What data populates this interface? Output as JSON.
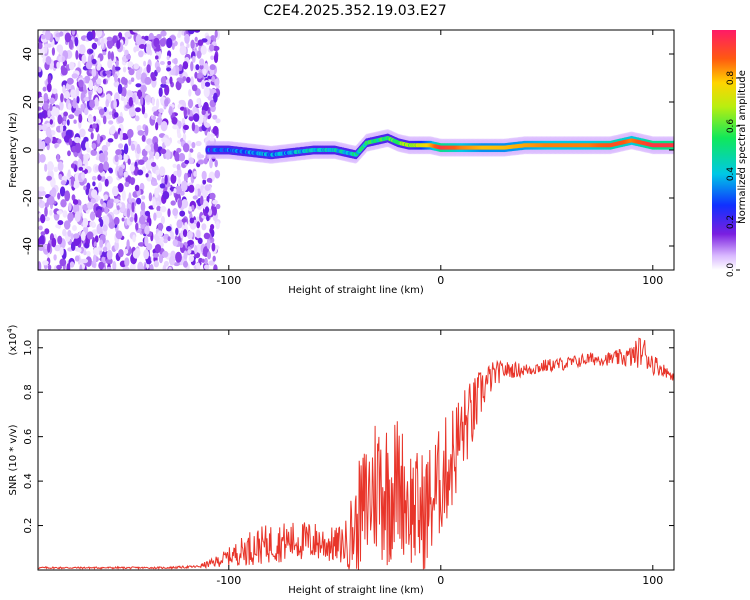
{
  "title": "C2E4.2025.352.19.03.E27",
  "chart_data": [
    {
      "type": "heatmap",
      "name": "spectrogram",
      "xlabel": "Height of straight line (km)",
      "ylabel": "Frequency (Hz)",
      "xlim": [
        -190,
        110
      ],
      "ylim": [
        -50,
        50
      ],
      "xticks": [
        -100,
        0,
        100
      ],
      "yticks": [
        -40,
        -20,
        0,
        20,
        40
      ],
      "noise_region_x": [
        -190,
        -105
      ],
      "ridge": {
        "x": [
          -110,
          -100,
          -90,
          -80,
          -70,
          -60,
          -50,
          -40,
          -35,
          -30,
          -25,
          -20,
          -15,
          -10,
          -5,
          0,
          10,
          20,
          30,
          40,
          50,
          60,
          70,
          80,
          85,
          90,
          95,
          100,
          110
        ],
        "freq": [
          0,
          0,
          -1,
          -2,
          -1,
          0,
          0,
          -2,
          3,
          4,
          5,
          3,
          2,
          2,
          2,
          1,
          1,
          1,
          1,
          2,
          2,
          2,
          2,
          2,
          3,
          4,
          3,
          2,
          2
        ],
        "amp": [
          0.25,
          0.3,
          0.32,
          0.35,
          0.35,
          0.4,
          0.4,
          0.45,
          0.5,
          0.5,
          0.55,
          0.6,
          0.65,
          0.7,
          0.8,
          0.95,
          0.85,
          0.8,
          0.8,
          0.82,
          0.85,
          0.85,
          0.85,
          0.9,
          0.9,
          0.85,
          0.9,
          0.95,
          0.95
        ]
      },
      "colorbar": {
        "label": "Normalized spectral amplitude",
        "range": [
          0,
          1
        ],
        "ticks": [
          "0.0",
          "0.2",
          "0.4",
          "0.6",
          "0.8"
        ]
      }
    },
    {
      "type": "line",
      "name": "snr",
      "xlabel": "Height of straight line (km)",
      "ylabel": "SNR (10 * v/v)",
      "y_scale_label": "(x10",
      "y_scale_exp": "4",
      "xlim": [
        -190,
        110
      ],
      "ylim": [
        0,
        1.08
      ],
      "xticks": [
        -100,
        0,
        100
      ],
      "yticks": [
        "0.2",
        "0.4",
        "0.6",
        "0.8",
        "1.0"
      ],
      "color": "#e8352a",
      "series": [
        {
          "name": "SNR",
          "x": [
            -190,
            -170,
            -150,
            -130,
            -115,
            -108,
            -100,
            -95,
            -90,
            -80,
            -70,
            -60,
            -50,
            -45,
            -40,
            -35,
            -30,
            -25,
            -20,
            -15,
            -10,
            -5,
            0,
            5,
            10,
            15,
            20,
            25,
            30,
            40,
            50,
            60,
            70,
            80,
            90,
            95,
            100,
            105,
            110
          ],
          "y": [
            0.01,
            0.01,
            0.01,
            0.01,
            0.015,
            0.03,
            0.06,
            0.08,
            0.1,
            0.12,
            0.13,
            0.13,
            0.11,
            0.12,
            0.2,
            0.3,
            0.4,
            0.35,
            0.4,
            0.3,
            0.25,
            0.3,
            0.4,
            0.5,
            0.62,
            0.7,
            0.82,
            0.88,
            0.9,
            0.9,
            0.92,
            0.93,
            0.95,
            0.95,
            0.96,
            0.99,
            0.93,
            0.9,
            0.87
          ],
          "noise": [
            0.004,
            0.004,
            0.004,
            0.004,
            0.006,
            0.02,
            0.04,
            0.06,
            0.08,
            0.09,
            0.09,
            0.09,
            0.08,
            0.1,
            0.25,
            0.3,
            0.35,
            0.35,
            0.3,
            0.28,
            0.28,
            0.28,
            0.25,
            0.25,
            0.2,
            0.16,
            0.1,
            0.06,
            0.04,
            0.03,
            0.03,
            0.03,
            0.03,
            0.03,
            0.05,
            0.08,
            0.05,
            0.03,
            0.02
          ]
        }
      ]
    }
  ]
}
